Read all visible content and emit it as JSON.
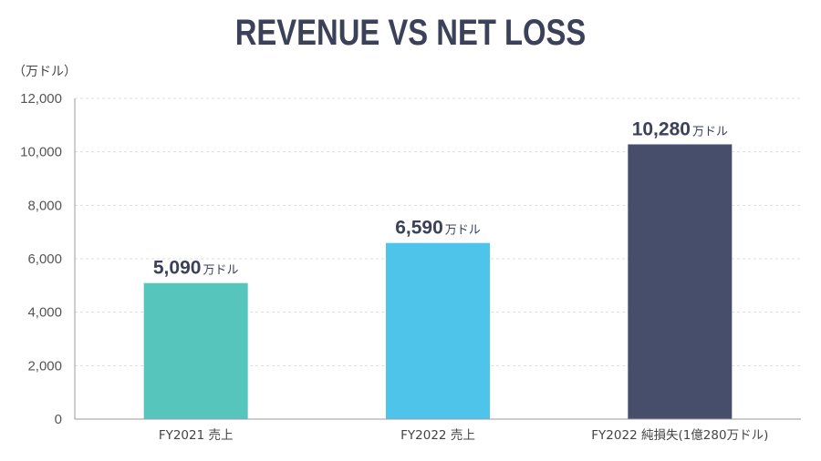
{
  "chart_data": {
    "type": "bar",
    "title": "REVENUE VS NET LOSS",
    "unit_label": "（万ドル）",
    "categories": [
      "FY2021 売上",
      "FY2022 売上",
      "FY2022 純損失(1億280万ドル)"
    ],
    "values": [
      5090,
      6590,
      10280
    ],
    "value_labels": [
      {
        "number": "5,090",
        "unit": "万ドル"
      },
      {
        "number": "6,590",
        "unit": "万ドル"
      },
      {
        "number": "10,280",
        "unit": "万ドル"
      }
    ],
    "colors": [
      "#56c5bc",
      "#4fc4ea",
      "#464e6b"
    ],
    "yticks": [
      {
        "value": 0,
        "label": "0"
      },
      {
        "value": 2000,
        "label": "2,000"
      },
      {
        "value": 4000,
        "label": "4,000"
      },
      {
        "value": 6000,
        "label": "6,000"
      },
      {
        "value": 8000,
        "label": "8,000"
      },
      {
        "value": 10000,
        "label": "10,000"
      },
      {
        "value": 12000,
        "label": "12,000"
      }
    ],
    "ylim": [
      0,
      12000
    ],
    "grid": true,
    "legend": "none"
  }
}
